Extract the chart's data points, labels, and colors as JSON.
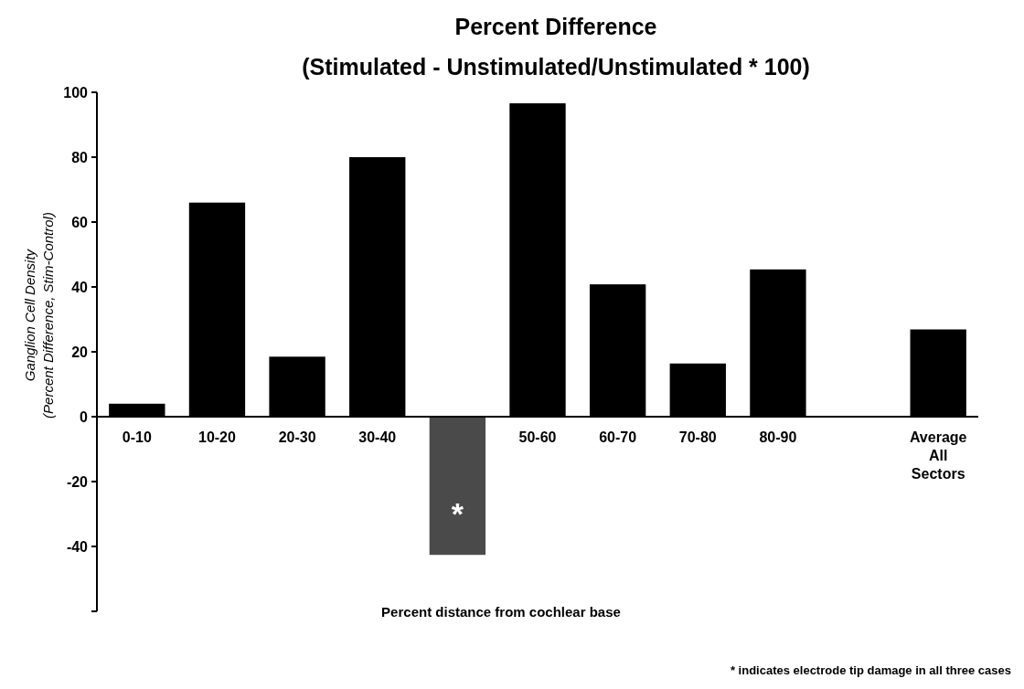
{
  "chart_data": {
    "type": "bar",
    "title": "Percent Difference",
    "subtitle": "(Stimulated - Unstimulated/Unstimulated * 100)",
    "xlabel": "Percent distance from cochlear base",
    "ylabel": "Ganglion Cell Density\n(Percent Difference, Stim-Control)",
    "categories": [
      "0-10",
      "10-20",
      "20-30",
      "30-40",
      null,
      "50-60",
      "60-70",
      "70-80",
      "80-90",
      null,
      "Average All Sectors"
    ],
    "values": [
      4,
      66,
      18.5,
      80,
      -42.6,
      96.6,
      40.8,
      16.4,
      45.4,
      null,
      26.9
    ],
    "colors": [
      "#000000",
      "#000000",
      "#000000",
      "#000000",
      "#4a4a4a",
      "#000000",
      "#000000",
      "#000000",
      "#000000",
      null,
      "#000000"
    ],
    "ylim": [
      -60,
      100
    ],
    "yticks": [
      100,
      80,
      60,
      40,
      20,
      0,
      -20,
      -40,
      {
        "value": -60,
        "label": null
      }
    ],
    "grid": false,
    "annotations": [
      "*",
      "* indicates electrode tip damage in all three cases"
    ]
  }
}
